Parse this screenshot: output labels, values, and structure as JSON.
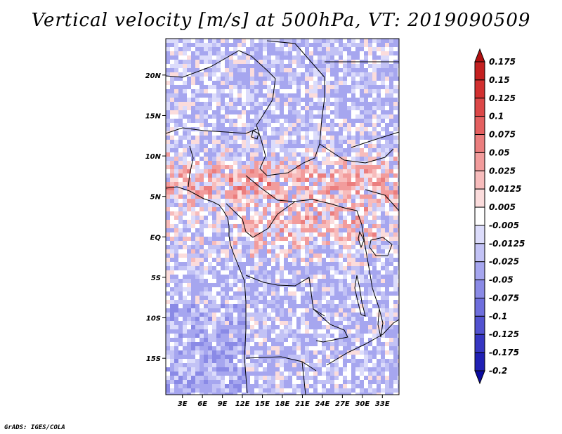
{
  "title": "Vertical velocity [m/s] at 500hPa, VT: 2019090509",
  "credit": "GrADS: IGES/COLA",
  "lat_axis": [
    "20N",
    "15N",
    "10N",
    "5N",
    "EQ",
    "5S",
    "10S",
    "15S"
  ],
  "lat_values": [
    20,
    15,
    10,
    5,
    0,
    -5,
    -10,
    -15
  ],
  "lon_axis": [
    "3E",
    "6E",
    "9E",
    "12E",
    "15E",
    "18E",
    "21E",
    "24E",
    "27E",
    "30E",
    "33E"
  ],
  "lon_values": [
    3,
    6,
    9,
    12,
    15,
    18,
    21,
    24,
    27,
    30,
    33
  ],
  "map_extent": {
    "lon_min": 0.5,
    "lon_max": 35.5,
    "lat_min": -19.5,
    "lat_max": 24.5
  },
  "colorbar": {
    "labels": [
      "0.175",
      "0.15",
      "0.125",
      "0.1",
      "0.075",
      "0.05",
      "0.025",
      "0.0125",
      "0.005",
      "-0.005",
      "-0.0125",
      "-0.025",
      "-0.05",
      "-0.075",
      "-0.1",
      "-0.125",
      "-0.175",
      "-0.2"
    ],
    "colors": [
      "#b01010",
      "#c42020",
      "#d23030",
      "#dc4848",
      "#e46060",
      "#eb7e7e",
      "#f29c9c",
      "#f7bcbc",
      "#fbdcdc",
      "#ffffff",
      "#dcdcfb",
      "#c2c2f5",
      "#a6a6ef",
      "#8a8ae6",
      "#6e6edd",
      "#5252d0",
      "#3636c2",
      "#2020b4",
      "#0a0aa0"
    ]
  },
  "colors": {
    "background": "#ffffff",
    "axis": "#000000",
    "coast": "#000000"
  }
}
